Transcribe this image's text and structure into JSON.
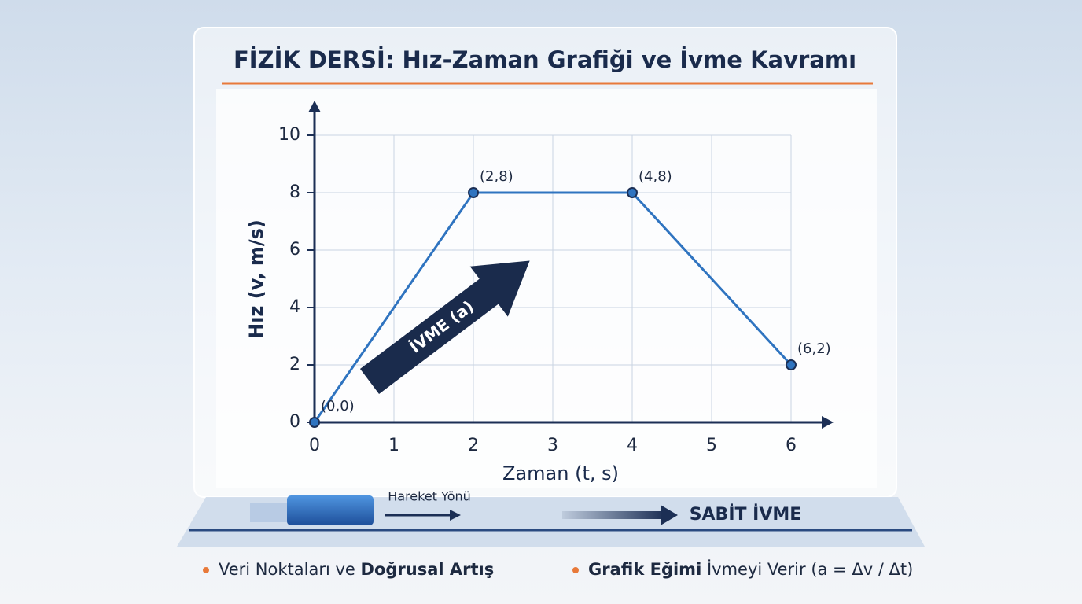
{
  "chart_data": {
    "type": "line",
    "title": "FİZİK DERSİ: Hız-Zaman Grafiği ve İvme Kavramı",
    "xlabel": "Zaman (t, s)",
    "ylabel": "Hız (v, m/s)",
    "x": [
      0,
      2,
      4,
      6
    ],
    "series": [
      {
        "color": "#2f74c0",
        "values": [
          0,
          8,
          8,
          2
        ],
        "value_labels": [
          "(0,0)",
          "(2,8)",
          "(4,8)",
          "(6,2)"
        ]
      }
    ],
    "xlim": [
      0,
      6
    ],
    "ylim": [
      0,
      10
    ],
    "xticks": [
      0,
      1,
      2,
      3,
      4,
      5,
      6
    ],
    "yticks": [
      0,
      2,
      4,
      6,
      8,
      10
    ],
    "grid": true,
    "annotations": {
      "arrow": "İVME (a)",
      "motion": "Hareket Yönü",
      "constant": "SABİT İVME"
    }
  },
  "footer": {
    "left_plain": "Veri Noktaları ve",
    "left_bold": "Doğrusal Artış",
    "right_bold": "Grafik Eğimi",
    "right_plain": "İvmeyi Verir (a = Δv / Δt)"
  }
}
